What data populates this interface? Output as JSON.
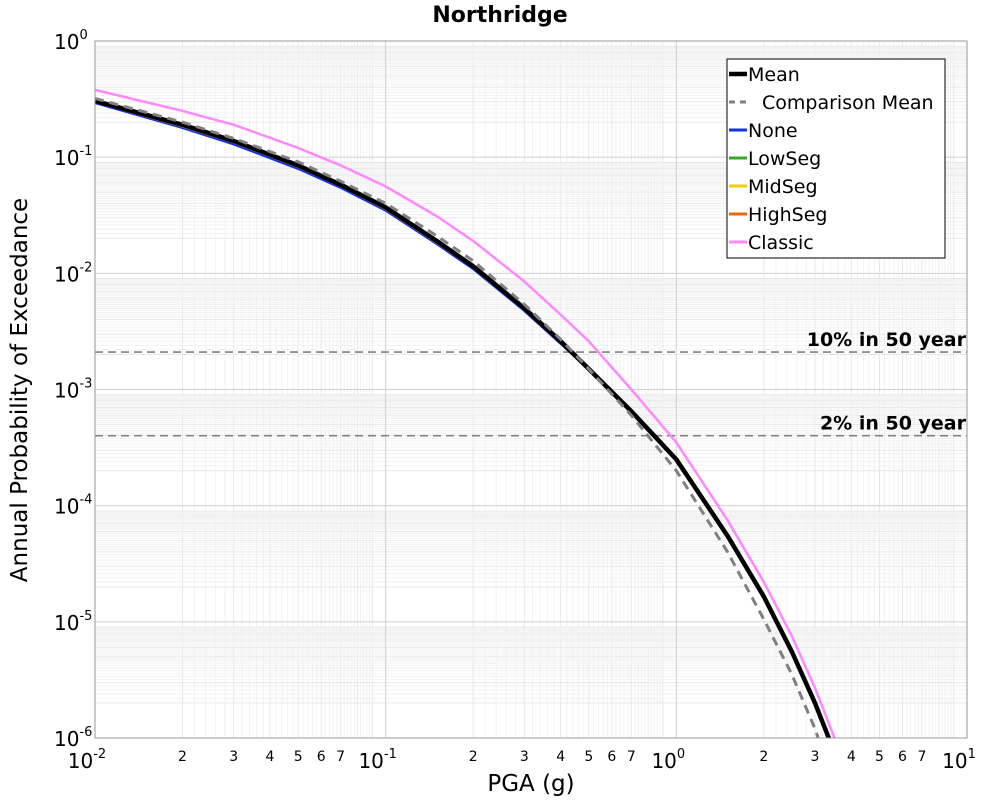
{
  "chart_data": {
    "type": "line",
    "title": "Northridge",
    "xlabel": "PGA (g)",
    "ylabel": "Annual Probability of Exceedance",
    "xscale": "log",
    "yscale": "log",
    "xlim": [
      0.01,
      10
    ],
    "ylim": [
      1e-06,
      1
    ],
    "grid": true,
    "legend_position": "top-right",
    "x_major_ticks": [
      {
        "value": 0.01,
        "base": "10",
        "exp": "-2"
      },
      {
        "value": 0.1,
        "base": "10",
        "exp": "-1"
      },
      {
        "value": 1,
        "base": "10",
        "exp": "0"
      },
      {
        "value": 10,
        "base": "10",
        "exp": "1"
      }
    ],
    "x_minor_ticks": [
      {
        "value": 0.02,
        "label": "2"
      },
      {
        "value": 0.03,
        "label": "3"
      },
      {
        "value": 0.04,
        "label": "4"
      },
      {
        "value": 0.05,
        "label": "5"
      },
      {
        "value": 0.06,
        "label": "6"
      },
      {
        "value": 0.07,
        "label": "7"
      },
      {
        "value": 0.2,
        "label": "2"
      },
      {
        "value": 0.3,
        "label": "3"
      },
      {
        "value": 0.4,
        "label": "4"
      },
      {
        "value": 0.5,
        "label": "5"
      },
      {
        "value": 0.6,
        "label": "6"
      },
      {
        "value": 0.7,
        "label": "7"
      },
      {
        "value": 2,
        "label": "2"
      },
      {
        "value": 3,
        "label": "3"
      },
      {
        "value": 4,
        "label": "4"
      },
      {
        "value": 5,
        "label": "5"
      },
      {
        "value": 6,
        "label": "6"
      },
      {
        "value": 7,
        "label": "7"
      }
    ],
    "y_major_ticks": [
      {
        "value": 1,
        "base": "10",
        "exp": "0"
      },
      {
        "value": 0.1,
        "base": "10",
        "exp": "-1"
      },
      {
        "value": 0.01,
        "base": "10",
        "exp": "-2"
      },
      {
        "value": 0.001,
        "base": "10",
        "exp": "-3"
      },
      {
        "value": 0.0001,
        "base": "10",
        "exp": "-4"
      },
      {
        "value": 1e-05,
        "base": "10",
        "exp": "-5"
      },
      {
        "value": 1e-06,
        "base": "10",
        "exp": "-6"
      }
    ],
    "reference_lines": [
      {
        "label": "10% in 50 year",
        "y": 0.0021,
        "color": "#808080"
      },
      {
        "label": "2% in 50 year",
        "y": 0.0004,
        "color": "#808080"
      }
    ],
    "x": [
      0.01,
      0.02,
      0.03,
      0.05,
      0.07,
      0.1,
      0.15,
      0.2,
      0.3,
      0.4,
      0.5,
      0.7,
      1.0,
      1.5,
      2.0,
      2.5,
      3.0,
      3.5
    ],
    "series": [
      {
        "name": "Classic",
        "color": "#ff88ff",
        "width": 2.5,
        "dash": "",
        "values": [
          0.38,
          0.25,
          0.19,
          0.12,
          0.085,
          0.056,
          0.031,
          0.019,
          0.0085,
          0.0044,
          0.0026,
          0.001,
          0.00035,
          7.5e-05,
          2.2e-05,
          7.5e-06,
          2.7e-06,
          1e-06
        ]
      },
      {
        "name": "None",
        "color": "#1133dd",
        "width": 3,
        "dash": "",
        "values": [
          0.295,
          0.18,
          0.13,
          0.08,
          0.055,
          0.035,
          0.018,
          0.011,
          0.0048,
          0.0025,
          0.0015,
          0.00065,
          0.00025,
          5.5e-05,
          1.65e-05,
          5.5e-06,
          2e-06,
          7.5e-07
        ]
      },
      {
        "name": "LowSeg",
        "color": "#33aa22",
        "width": 2.5,
        "dash": "",
        "values": [
          0.3,
          0.185,
          0.135,
          0.083,
          0.057,
          0.036,
          0.0185,
          0.0113,
          0.0049,
          0.00255,
          0.00152,
          0.00066,
          0.00025,
          5.5e-05,
          1.65e-05,
          5.5e-06,
          2e-06,
          7.5e-07
        ]
      },
      {
        "name": "MidSeg",
        "color": "#eecc11",
        "width": 2.5,
        "dash": "",
        "values": [
          0.3,
          0.185,
          0.135,
          0.083,
          0.057,
          0.036,
          0.0185,
          0.0113,
          0.0049,
          0.00255,
          0.00152,
          0.00066,
          0.00025,
          5.5e-05,
          1.65e-05,
          5.5e-06,
          2e-06,
          7.5e-07
        ]
      },
      {
        "name": "HighSeg",
        "color": "#ee6611",
        "width": 2.5,
        "dash": "",
        "values": [
          0.3,
          0.185,
          0.135,
          0.083,
          0.057,
          0.036,
          0.0185,
          0.0113,
          0.0049,
          0.00255,
          0.00152,
          0.00066,
          0.00025,
          5.5e-05,
          1.65e-05,
          5.5e-06,
          2e-06,
          7.5e-07
        ]
      },
      {
        "name": "Mean",
        "color": "#000000",
        "width": 4.5,
        "dash": "",
        "values": [
          0.305,
          0.19,
          0.138,
          0.085,
          0.058,
          0.037,
          0.019,
          0.0115,
          0.005,
          0.0026,
          0.0015,
          0.00065,
          0.00025,
          5.5e-05,
          1.65e-05,
          5.5e-06,
          2e-06,
          7.5e-07
        ]
      },
      {
        "name": "Comparison Mean",
        "color": "#808080",
        "width": 3,
        "dash": "9,6",
        "values": [
          0.32,
          0.2,
          0.145,
          0.091,
          0.062,
          0.04,
          0.021,
          0.0128,
          0.0054,
          0.0027,
          0.0015,
          0.0006,
          0.0002,
          4e-05,
          1.05e-05,
          3.5e-06,
          1.2e-06,
          4e-07
        ]
      }
    ],
    "legend": [
      {
        "label": "Mean",
        "color": "#000000",
        "width": 4.5,
        "dash": ""
      },
      {
        "label": "Comparison Mean",
        "color": "#808080",
        "width": 3,
        "dash": "9,6"
      },
      {
        "label": "None",
        "color": "#1133dd",
        "width": 3,
        "dash": ""
      },
      {
        "label": "LowSeg",
        "color": "#33aa22",
        "width": 3,
        "dash": ""
      },
      {
        "label": "MidSeg",
        "color": "#eecc11",
        "width": 3,
        "dash": ""
      },
      {
        "label": "HighSeg",
        "color": "#ee6611",
        "width": 3,
        "dash": ""
      },
      {
        "label": "Classic",
        "color": "#ff88ff",
        "width": 3,
        "dash": ""
      }
    ]
  }
}
